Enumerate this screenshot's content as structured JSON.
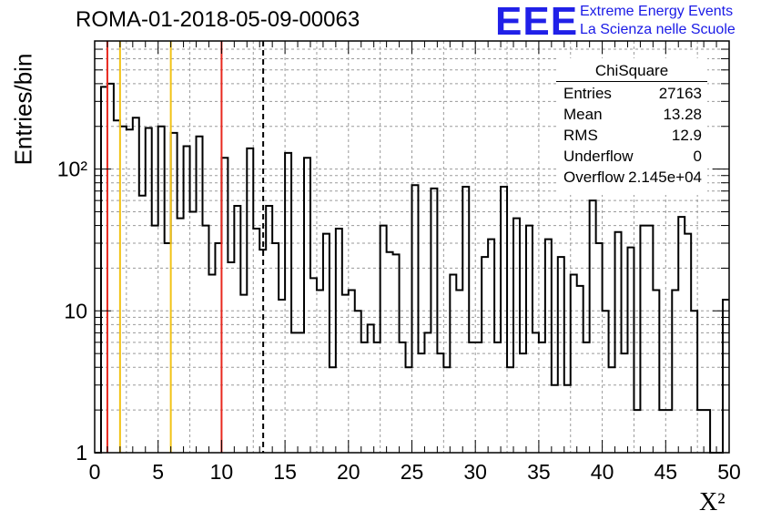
{
  "header": {
    "title": "ROMA-01-2018-05-09-00063",
    "logo_text": "EEE",
    "logo_line1": "Extreme Energy Events",
    "logo_line2": "La Scienza nelle Scuole"
  },
  "stats": {
    "title": "ChiSquare",
    "rows": [
      {
        "key": "Entries",
        "value": "27163"
      },
      {
        "key": "Mean",
        "value": "13.28"
      },
      {
        "key": "RMS",
        "value": "12.9"
      },
      {
        "key": "Underflow",
        "value": "0"
      },
      {
        "key": "Overflow",
        "value": "2.145e+04"
      }
    ]
  },
  "chart_data": {
    "type": "histogram",
    "xlabel": "X²",
    "ylabel": "Entries/bin",
    "xlim": [
      0,
      50
    ],
    "ylim": [
      1,
      800
    ],
    "yscale": "log",
    "grid": true,
    "bin_width": 0.5,
    "x_ticks": [
      0,
      5,
      10,
      15,
      20,
      25,
      30,
      35,
      40,
      45,
      50
    ],
    "y_ticks": [
      {
        "value": 1,
        "label": "1"
      },
      {
        "value": 10,
        "label": "10"
      },
      {
        "value": 100,
        "label": "10²"
      }
    ],
    "values": [
      0,
      380,
      400,
      220,
      200,
      190,
      230,
      65,
      195,
      40,
      200,
      30,
      180,
      45,
      145,
      50,
      170,
      40,
      18,
      30,
      120,
      22,
      55,
      13,
      140,
      38,
      27,
      55,
      30,
      12,
      130,
      7,
      7,
      120,
      17,
      14,
      35,
      4,
      38,
      13,
      14,
      10,
      6,
      8,
      6,
      40,
      26,
      25,
      6,
      4,
      77,
      5,
      7,
      73,
      5,
      4,
      18,
      14,
      75,
      6,
      6,
      24,
      32,
      6,
      75,
      4,
      45,
      5,
      40,
      7,
      6,
      32,
      3,
      24,
      3,
      18,
      15,
      6,
      60,
      30,
      10,
      4,
      36,
      5,
      28,
      2,
      40,
      40,
      14,
      2,
      2,
      14,
      46,
      35,
      10,
      2,
      2,
      1,
      1,
      12
    ],
    "vlines": [
      {
        "x": 1,
        "color": "#e8281e",
        "style": "solid"
      },
      {
        "x": 2,
        "color": "#f2c316",
        "style": "solid"
      },
      {
        "x": 6,
        "color": "#f2c316",
        "style": "solid"
      },
      {
        "x": 10,
        "color": "#e8281e",
        "style": "solid"
      },
      {
        "x": 13.28,
        "color": "#000000",
        "style": "dashed"
      }
    ]
  }
}
